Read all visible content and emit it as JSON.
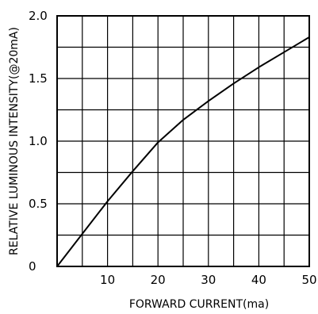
{
  "chart_data": {
    "type": "line",
    "xlabel": "FORWARD CURRENT(ma)",
    "ylabel": "RELATIVE LUMINOUS INTENSITY(@20mA)",
    "xlim": [
      0,
      50
    ],
    "ylim": [
      0,
      2.0
    ],
    "xticks": [
      10,
      20,
      30,
      40,
      50
    ],
    "xtick_labels": [
      "10",
      "20",
      "30",
      "40",
      "50"
    ],
    "yticks": [
      0,
      0.5,
      1.0,
      1.5,
      2.0
    ],
    "ytick_labels": [
      "0",
      "0.5",
      "1.0",
      "1.5",
      "2.0"
    ],
    "grid": true,
    "grid_x_step": 5,
    "grid_y_step": 0.25,
    "series": [
      {
        "color": "#000000",
        "x": [
          0,
          5,
          10,
          15,
          20,
          25,
          30,
          35,
          40,
          45,
          50
        ],
        "y": [
          0,
          0.26,
          0.52,
          0.76,
          0.99,
          1.17,
          1.32,
          1.46,
          1.59,
          1.71,
          1.83
        ]
      }
    ]
  }
}
